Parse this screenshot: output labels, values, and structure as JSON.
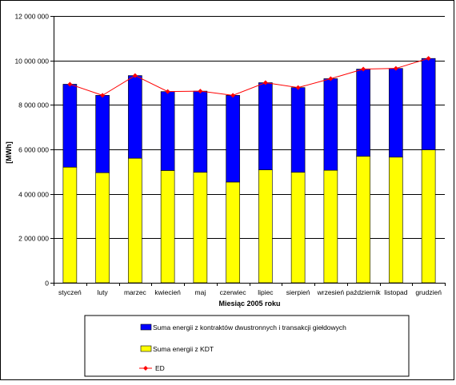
{
  "chart_data": {
    "type": "bar",
    "stacked": true,
    "xlabel": "Miesiąc 2005 roku",
    "ylabel": "[MWh]",
    "ylim": [
      0,
      12000000
    ],
    "yticks": [
      0,
      2000000,
      4000000,
      6000000,
      8000000,
      10000000,
      12000000
    ],
    "ytick_labels": [
      "0",
      "2 000 000",
      "4 000 000",
      "6 000 000",
      "8 000 000",
      "10 000 000",
      "12 000 000"
    ],
    "grid": "horizontal",
    "legend_position": "bottom",
    "categories": [
      "styczeń",
      "luty",
      "marzec",
      "kwiecień",
      "maj",
      "czerwiec",
      "lipiec",
      "sierpień",
      "wrzesień",
      "październik",
      "listopad",
      "grudzień"
    ],
    "series": [
      {
        "name": "Suma energii z KDT",
        "type": "bar",
        "color": "#ffff00",
        "values": [
          5200000,
          4950000,
          5600000,
          5050000,
          4970000,
          4530000,
          5080000,
          4970000,
          5060000,
          5690000,
          5650000,
          5980000
        ]
      },
      {
        "name": "Suma energii z kontraktów dwustronnych i transakcji giełdowych",
        "type": "bar",
        "color": "#0000ff",
        "values": [
          3730000,
          3480000,
          3720000,
          3550000,
          3650000,
          3900000,
          3920000,
          3810000,
          4120000,
          3920000,
          3990000,
          4110000
        ]
      },
      {
        "name": "ED",
        "type": "line",
        "color": "#ff0000",
        "values": [
          8930000,
          8430000,
          9320000,
          8600000,
          8620000,
          8430000,
          9000000,
          8780000,
          9180000,
          9610000,
          9640000,
          10090000
        ]
      }
    ]
  }
}
